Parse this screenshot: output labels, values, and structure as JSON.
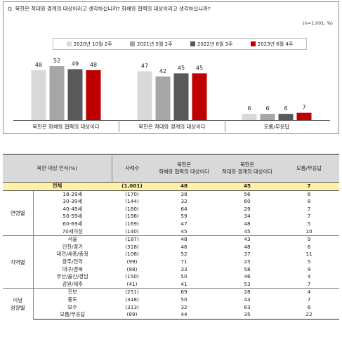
{
  "chart_data": [
    {
      "type": "bar",
      "title": "Q. 북한은 적대와 경계의 대상이라고 생각하십니까? 화해와 협력의 대상이라고 생각하십니까?",
      "note": "(n=1,001, %)",
      "categories": [
        "북한은 화해와 협력의 대상이다",
        "북한은 적대와 경계의 대상이다",
        "모름/무응답"
      ],
      "series": [
        {
          "name": "2020년 10월 2주",
          "color": "#d9d9d9",
          "values": [
            48,
            47,
            6
          ]
        },
        {
          "name": "2021년 5월 2주",
          "color": "#a6a6a6",
          "values": [
            52,
            42,
            6
          ]
        },
        {
          "name": "2022년 6월 3주",
          "color": "#595959",
          "values": [
            49,
            45,
            6
          ]
        },
        {
          "name": "2023년 6월 4주",
          "color": "#c00000",
          "values": [
            48,
            45,
            7
          ]
        }
      ],
      "ylim": [
        0,
        60
      ],
      "legend_position": "top"
    },
    {
      "type": "table",
      "headers": {
        "group": "북한 대상 인식(%)",
        "n": "사례수",
        "col1": [
          "북한은",
          "화해와 협력의 대상이다"
        ],
        "col2": [
          "북한은",
          "적대와 경계의 대상이다"
        ],
        "col3": "모름/무응답"
      },
      "total": {
        "label": "전체",
        "n": "(1,001)",
        "v1": "48",
        "v2": "45",
        "v3": "7"
      },
      "groups": [
        {
          "name": [
            "연령별"
          ],
          "rows": [
            {
              "label": "18-29세",
              "n": "(170)",
              "v1": "38",
              "v2": "56",
              "v3": "6"
            },
            {
              "label": "30-39세",
              "n": "(144)",
              "v1": "32",
              "v2": "60",
              "v3": "8"
            },
            {
              "label": "40-49세",
              "n": "(180)",
              "v1": "64",
              "v2": "29",
              "v3": "7"
            },
            {
              "label": "50-59세",
              "n": "(198)",
              "v1": "59",
              "v2": "34",
              "v3": "7"
            },
            {
              "label": "60-69세",
              "n": "(169)",
              "v1": "47",
              "v2": "48",
              "v3": "5"
            },
            {
              "label": "70세이상",
              "n": "(140)",
              "v1": "45",
              "v2": "45",
              "v3": "10"
            }
          ]
        },
        {
          "name": [
            "지역별"
          ],
          "rows": [
            {
              "label": "서울",
              "n": "(187)",
              "v1": "48",
              "v2": "43",
              "v3": "9"
            },
            {
              "label": "인천/경기",
              "n": "(318)",
              "v1": "46",
              "v2": "48",
              "v3": "6"
            },
            {
              "label": "대전/세종/충청",
              "n": "(108)",
              "v1": "52",
              "v2": "37",
              "v3": "11"
            },
            {
              "label": "광주/전라",
              "n": "(99)",
              "v1": "71",
              "v2": "25",
              "v3": "5"
            },
            {
              "label": "대구/경북",
              "n": "(98)",
              "v1": "33",
              "v2": "58",
              "v3": "9"
            },
            {
              "label": "부산/울산/경남",
              "n": "(150)",
              "v1": "50",
              "v2": "46",
              "v3": "4"
            },
            {
              "label": "강원/제주",
              "n": "(41)",
              "v1": "41",
              "v2": "53",
              "v3": "7"
            }
          ]
        },
        {
          "name": [
            "이념",
            "성향별"
          ],
          "rows": [
            {
              "label": "진보",
              "n": "(251)",
              "v1": "69",
              "v2": "28",
              "v3": "4"
            },
            {
              "label": "중도",
              "n": "(348)",
              "v1": "50",
              "v2": "43",
              "v3": "7"
            },
            {
              "label": "보수",
              "n": "(313)",
              "v1": "32",
              "v2": "63",
              "v3": "6"
            },
            {
              "label": "모름/무응답",
              "n": "(89)",
              "v1": "44",
              "v2": "35",
              "v3": "22"
            }
          ]
        }
      ]
    }
  ]
}
